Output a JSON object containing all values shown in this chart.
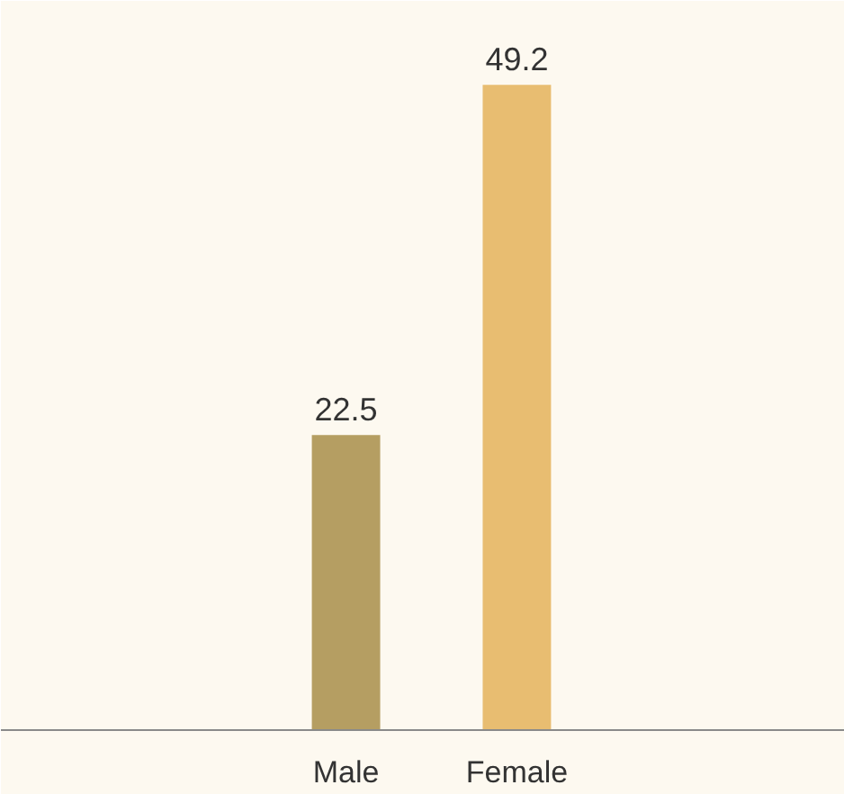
{
  "chart_data": {
    "type": "bar",
    "categories": [
      "Male",
      "Female"
    ],
    "values": [
      22.5,
      49.2
    ],
    "colors": [
      "#b59e62",
      "#e8bd71"
    ],
    "data_labels": true,
    "tick_labels": "x"
  }
}
